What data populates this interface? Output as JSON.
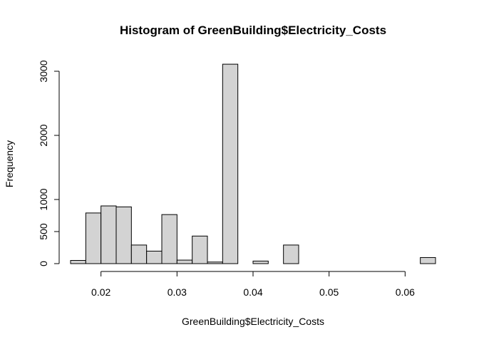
{
  "chart_data": {
    "type": "bar",
    "title": "Histogram of GreenBuilding$Electricity_Costs",
    "xlabel": "GreenBuilding$Electricity_Costs",
    "ylabel": "Frequency",
    "bar_color": "#d3d3d3",
    "border_color": "#000000",
    "xlim": [
      0.016,
      0.064
    ],
    "ylim": [
      0,
      3000
    ],
    "x_ticks": [
      0.02,
      0.03,
      0.04,
      0.05,
      0.06
    ],
    "x_tick_labels": [
      "0.02",
      "0.03",
      "0.04",
      "0.05",
      "0.06"
    ],
    "y_ticks": [
      0,
      500,
      1000,
      2000,
      3000
    ],
    "y_tick_labels": [
      "0",
      "500",
      "1000",
      "2000",
      "3000"
    ],
    "bins": [
      {
        "x0": 0.016,
        "x1": 0.018,
        "count": 50
      },
      {
        "x0": 0.018,
        "x1": 0.02,
        "count": 790
      },
      {
        "x0": 0.02,
        "x1": 0.022,
        "count": 900
      },
      {
        "x0": 0.022,
        "x1": 0.024,
        "count": 885
      },
      {
        "x0": 0.024,
        "x1": 0.026,
        "count": 290
      },
      {
        "x0": 0.026,
        "x1": 0.028,
        "count": 195
      },
      {
        "x0": 0.028,
        "x1": 0.03,
        "count": 765
      },
      {
        "x0": 0.03,
        "x1": 0.032,
        "count": 55
      },
      {
        "x0": 0.032,
        "x1": 0.034,
        "count": 430
      },
      {
        "x0": 0.034,
        "x1": 0.036,
        "count": 25
      },
      {
        "x0": 0.036,
        "x1": 0.038,
        "count": 3110
      },
      {
        "x0": 0.038,
        "x1": 0.04,
        "count": 0
      },
      {
        "x0": 0.04,
        "x1": 0.042,
        "count": 40
      },
      {
        "x0": 0.042,
        "x1": 0.044,
        "count": 0
      },
      {
        "x0": 0.044,
        "x1": 0.046,
        "count": 290
      },
      {
        "x0": 0.046,
        "x1": 0.048,
        "count": 0
      },
      {
        "x0": 0.048,
        "x1": 0.05,
        "count": 0
      },
      {
        "x0": 0.05,
        "x1": 0.052,
        "count": 0
      },
      {
        "x0": 0.052,
        "x1": 0.054,
        "count": 0
      },
      {
        "x0": 0.054,
        "x1": 0.056,
        "count": 0
      },
      {
        "x0": 0.056,
        "x1": 0.058,
        "count": 0
      },
      {
        "x0": 0.058,
        "x1": 0.06,
        "count": 0
      },
      {
        "x0": 0.06,
        "x1": 0.062,
        "count": 0
      },
      {
        "x0": 0.062,
        "x1": 0.064,
        "count": 95
      }
    ]
  }
}
